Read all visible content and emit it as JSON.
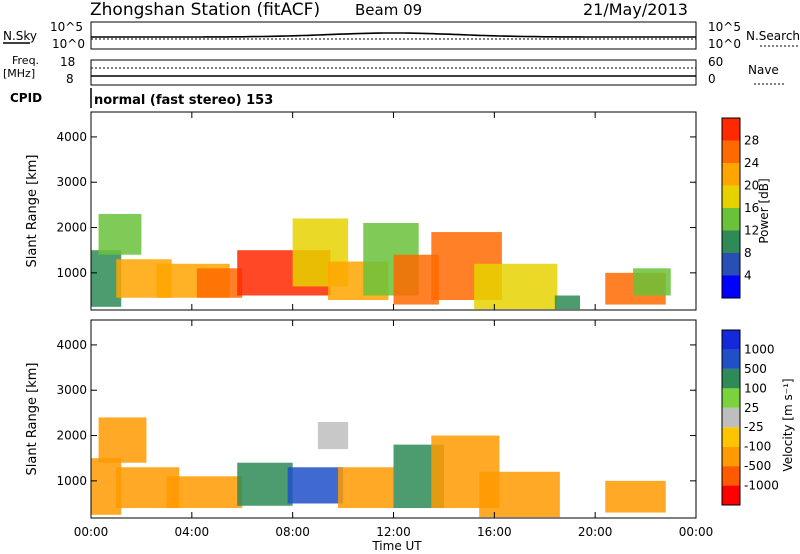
{
  "header": {
    "title": "Zhongshan Station (fitACF)",
    "beam": "Beam 09",
    "date": "21/May/2013"
  },
  "nsky_panel": {
    "left_label": "N.Sky",
    "right_label": "N.Search",
    "left_ticks": [
      "10^5",
      "10^0"
    ],
    "right_ticks": [
      "10^5",
      "10^0"
    ]
  },
  "freq_panel": {
    "left_label_1": "Freq.",
    "left_label_2": "[MHz]",
    "right_label": "Nave",
    "left_ticks": [
      "18",
      "8"
    ],
    "right_ticks": [
      "60",
      "0"
    ]
  },
  "cpid": {
    "label": "CPID",
    "value": "normal (fast stereo) 153"
  },
  "colors": {
    "power": [
      "#0000ff",
      "#2850b4",
      "#2e8b57",
      "#6ac23a",
      "#e6d200",
      "#ffa500",
      "#ff6a00",
      "#ff2800"
    ],
    "velocity": [
      "#ff0000",
      "#ff5a00",
      "#ff9a00",
      "#ffc400",
      "#bebebe",
      "#7cd23c",
      "#2e8b57",
      "#2050c8",
      "#1428dc"
    ]
  },
  "chart_data": [
    {
      "type": "heatmap",
      "name": "power",
      "ylabel": "Slant Range [km]",
      "yticks": [
        "1000",
        "2000",
        "3000",
        "4000"
      ],
      "ylim": [
        180,
        4550
      ],
      "xlim": [
        0,
        24
      ],
      "xticks": [
        "00:00",
        "04:00",
        "08:00",
        "12:00",
        "16:00",
        "20:00",
        "00:00"
      ],
      "colorbar_title": "Power [dB]",
      "colorbar_ticks": [
        "4",
        "8",
        "12",
        "16",
        "20",
        "24",
        "28"
      ],
      "cells": [
        {
          "t0": 0.0,
          "t1": 1.2,
          "r0": 250,
          "r1": 1500,
          "v": 10
        },
        {
          "t0": 0.3,
          "t1": 2.0,
          "r0": 1400,
          "r1": 2300,
          "v": 14
        },
        {
          "t0": 1.0,
          "t1": 3.2,
          "r0": 450,
          "r1": 1300,
          "v": 20
        },
        {
          "t0": 2.6,
          "t1": 5.5,
          "r0": 450,
          "r1": 1200,
          "v": 22
        },
        {
          "t0": 4.2,
          "t1": 6.0,
          "r0": 450,
          "r1": 1100,
          "v": 26
        },
        {
          "t0": 5.8,
          "t1": 9.5,
          "r0": 500,
          "r1": 1500,
          "v": 30
        },
        {
          "t0": 8.0,
          "t1": 10.2,
          "r0": 700,
          "r1": 2200,
          "v": 16
        },
        {
          "t0": 9.4,
          "t1": 11.8,
          "r0": 400,
          "r1": 1250,
          "v": 20
        },
        {
          "t0": 10.8,
          "t1": 13.0,
          "r0": 500,
          "r1": 2100,
          "v": 14
        },
        {
          "t0": 12.0,
          "t1": 13.8,
          "r0": 300,
          "r1": 1400,
          "v": 24
        },
        {
          "t0": 13.5,
          "t1": 16.3,
          "r0": 400,
          "r1": 1900,
          "v": 26
        },
        {
          "t0": 15.2,
          "t1": 18.5,
          "r0": 200,
          "r1": 1200,
          "v": 18
        },
        {
          "t0": 18.4,
          "t1": 19.4,
          "r0": 200,
          "r1": 500,
          "v": 8
        },
        {
          "t0": 20.4,
          "t1": 22.8,
          "r0": 300,
          "r1": 1000,
          "v": 26
        },
        {
          "t0": 21.5,
          "t1": 23.0,
          "r0": 500,
          "r1": 1100,
          "v": 12
        }
      ]
    },
    {
      "type": "heatmap",
      "name": "velocity",
      "ylabel": "Slant Range [km]",
      "yticks": [
        "1000",
        "2000",
        "3000",
        "4000"
      ],
      "ylim": [
        180,
        4550
      ],
      "xlim": [
        0,
        24
      ],
      "xticks": [
        "00:00",
        "04:00",
        "08:00",
        "12:00",
        "16:00",
        "20:00",
        "00:00"
      ],
      "xlabel": "Time UT",
      "colorbar_title": "Velocity [m s⁻¹]",
      "colorbar_ticks": [
        "-1000",
        "-500",
        "-100",
        "-25",
        "25",
        "100",
        "500",
        "1000"
      ],
      "cells": [
        {
          "t0": 0.0,
          "t1": 1.2,
          "r0": 250,
          "r1": 1500,
          "v": -200
        },
        {
          "t0": 0.3,
          "t1": 2.2,
          "r0": 1400,
          "r1": 2400,
          "v": -300
        },
        {
          "t0": 1.0,
          "t1": 3.5,
          "r0": 400,
          "r1": 1300,
          "v": -250
        },
        {
          "t0": 3.0,
          "t1": 6.0,
          "r0": 400,
          "r1": 1100,
          "v": -150
        },
        {
          "t0": 5.8,
          "t1": 8.0,
          "r0": 450,
          "r1": 1400,
          "v": 200
        },
        {
          "t0": 7.8,
          "t1": 10.0,
          "r0": 500,
          "r1": 1300,
          "v": 800
        },
        {
          "t0": 9.0,
          "t1": 10.2,
          "r0": 1700,
          "r1": 2300,
          "v": 10
        },
        {
          "t0": 9.8,
          "t1": 12.0,
          "r0": 400,
          "r1": 1300,
          "v": -180
        },
        {
          "t0": 12.0,
          "t1": 14.0,
          "r0": 400,
          "r1": 1800,
          "v": 300
        },
        {
          "t0": 13.5,
          "t1": 16.2,
          "r0": 400,
          "r1": 2000,
          "v": -200
        },
        {
          "t0": 15.4,
          "t1": 18.6,
          "r0": 200,
          "r1": 1200,
          "v": -300
        },
        {
          "t0": 20.4,
          "t1": 22.8,
          "r0": 300,
          "r1": 1000,
          "v": -250
        }
      ]
    }
  ]
}
